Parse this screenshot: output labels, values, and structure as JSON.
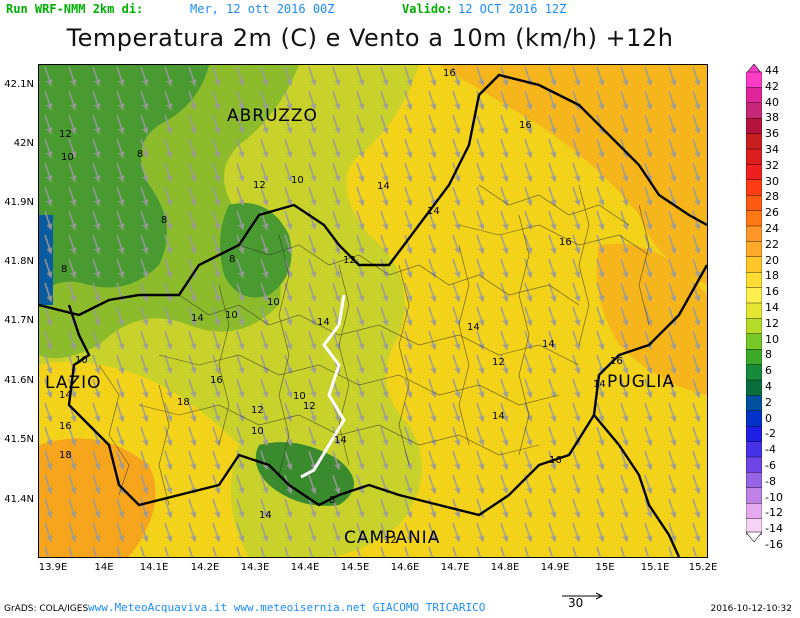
{
  "header": {
    "run_label": "Run WRF-NMM 2km di:",
    "run_date": "Mer, 12 ott 2016 00Z",
    "valid_label": "Valido:",
    "valid_date": "12 OCT 2016 12Z"
  },
  "title": "Temperatura 2m (C) e Vento a 10m (km/h) +12h",
  "map": {
    "lat_ticks": [
      "42.1N",
      "42N",
      "41.9N",
      "41.8N",
      "41.7N",
      "41.6N",
      "41.5N",
      "41.4N"
    ],
    "lon_ticks": [
      "13.9E",
      "14E",
      "14.1E",
      "14.2E",
      "14.3E",
      "14.4E",
      "14.5E",
      "14.6E",
      "14.7E",
      "14.8E",
      "14.9E",
      "15E",
      "15.1E",
      "15.2E"
    ],
    "regions": {
      "abruzzo": "ABRUZZO",
      "lazio": "LAZIO",
      "puglia": "PUGLIA",
      "campania": "CAMPANIA"
    },
    "contour_labels": [
      {
        "id": "c1",
        "text": "16"
      },
      {
        "id": "c2",
        "text": "16"
      },
      {
        "id": "c3",
        "text": "12"
      },
      {
        "id": "c4",
        "text": "10"
      },
      {
        "id": "c5",
        "text": "8"
      },
      {
        "id": "c6",
        "text": "12"
      },
      {
        "id": "c7",
        "text": "10"
      },
      {
        "id": "c8",
        "text": "14"
      },
      {
        "id": "c9",
        "text": "8"
      },
      {
        "id": "c10",
        "text": "14"
      },
      {
        "id": "c11",
        "text": "16"
      },
      {
        "id": "c12",
        "text": "8"
      },
      {
        "id": "c13",
        "text": "8"
      },
      {
        "id": "c14",
        "text": "12"
      },
      {
        "id": "c15",
        "text": "10"
      },
      {
        "id": "c16",
        "text": "14"
      },
      {
        "id": "c17",
        "text": "14"
      },
      {
        "id": "c18",
        "text": "14"
      },
      {
        "id": "c19",
        "text": "14"
      },
      {
        "id": "c20",
        "text": "10"
      },
      {
        "id": "c21",
        "text": "16"
      },
      {
        "id": "c22",
        "text": "12"
      },
      {
        "id": "c23",
        "text": "16"
      },
      {
        "id": "c24",
        "text": "14"
      },
      {
        "id": "c25",
        "text": "18"
      },
      {
        "id": "c26",
        "text": "10"
      },
      {
        "id": "c27",
        "text": "12"
      },
      {
        "id": "c28",
        "text": "12"
      },
      {
        "id": "c29",
        "text": "10"
      },
      {
        "id": "c30",
        "text": "14"
      },
      {
        "id": "c31",
        "text": "14"
      },
      {
        "id": "c32",
        "text": "16"
      },
      {
        "id": "c33",
        "text": "18"
      },
      {
        "id": "c34",
        "text": "8"
      },
      {
        "id": "c35",
        "text": "14"
      },
      {
        "id": "c36",
        "text": "12"
      },
      {
        "id": "c37",
        "text": "10"
      },
      {
        "id": "c38",
        "text": "14"
      },
      {
        "id": "c39",
        "text": "16"
      }
    ]
  },
  "colorbar": {
    "labels": [
      "44",
      "42",
      "40",
      "38",
      "36",
      "34",
      "32",
      "30",
      "28",
      "26",
      "24",
      "22",
      "20",
      "18",
      "16",
      "14",
      "12",
      "10",
      "8",
      "6",
      "4",
      "2",
      "0",
      "-2",
      "-4",
      "-6",
      "-8",
      "-10",
      "-12",
      "-14",
      "-16"
    ],
    "colors": [
      "#ff3cc8",
      "#e0259a",
      "#c82878",
      "#b4143c",
      "#c81e1e",
      "#dc1e1e",
      "#f01e1e",
      "#ff3c14",
      "#ff5a14",
      "#ff7814",
      "#ff9628",
      "#ffaa28",
      "#ffc828",
      "#ffdc32",
      "#fff050",
      "#e6e632",
      "#b4dc28",
      "#78c828",
      "#3caa28",
      "#148c3c",
      "#0a6e3c",
      "#0050a0",
      "#0032c8",
      "#1e1ee6",
      "#4632e6",
      "#6e46e6",
      "#9664e6",
      "#be82e6",
      "#e6aaf0",
      "#f6d2f6"
    ]
  },
  "footer": {
    "grads": "GrADS: COLA/IGES",
    "site": "www.MeteoAcquaviva.it www.meteoisernia.net GIACOMO TRICARICO",
    "wind_ref": "30",
    "timestamp": "2016-10-12-10:32"
  }
}
